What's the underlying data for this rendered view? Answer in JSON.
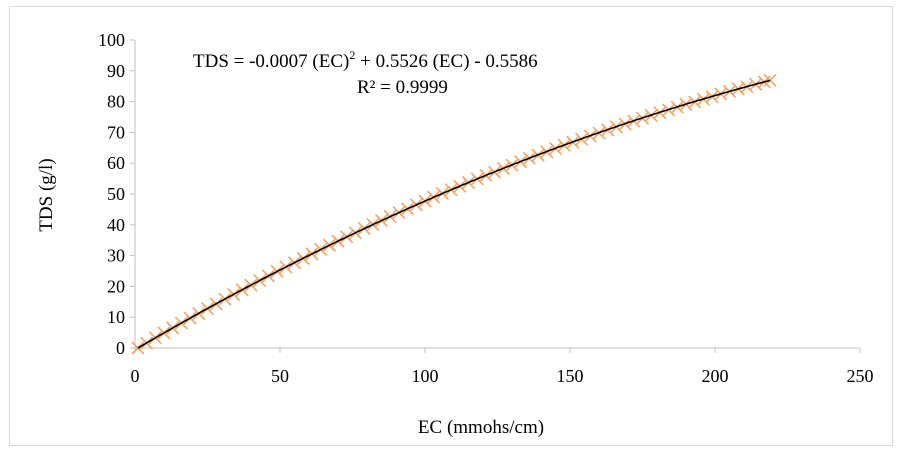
{
  "chart_data": {
    "type": "scatter",
    "title": "",
    "xlabel": "EC (mmohs/cm)",
    "ylabel": "TDS (g/l)",
    "xlim": [
      0,
      250
    ],
    "ylim": [
      0,
      100
    ],
    "x_ticks": [
      "0",
      "50",
      "100",
      "150",
      "200",
      "250"
    ],
    "y_ticks": [
      "0",
      "10",
      "20",
      "30",
      "40",
      "50",
      "60",
      "70",
      "80",
      "90",
      "100"
    ],
    "grid": false,
    "legend": "none",
    "series": [
      {
        "marker": "x",
        "color": "#f4a460",
        "x": [
          1,
          4,
          7,
          10,
          13,
          16,
          19,
          22,
          25,
          28,
          31,
          34,
          37,
          40,
          43,
          46,
          49,
          52,
          55,
          58,
          61,
          64,
          67,
          70,
          73,
          76,
          79,
          82,
          85,
          88,
          91,
          94,
          97,
          100,
          103,
          106,
          109,
          112,
          115,
          118,
          121,
          124,
          127,
          130,
          133,
          136,
          139,
          142,
          145,
          148,
          151,
          154,
          157,
          160,
          163,
          166,
          169,
          172,
          175,
          178,
          181,
          184,
          187,
          190,
          193,
          196,
          199,
          202,
          205,
          208,
          211,
          214,
          217,
          219
        ],
        "y": [
          0,
          1.6,
          3.3,
          4.9,
          6.5,
          8.1,
          9.7,
          11.2,
          12.8,
          14.3,
          15.9,
          17.4,
          18.9,
          20.4,
          21.9,
          23.4,
          24.9,
          26.3,
          27.7,
          29.1,
          30.6,
          32.0,
          33.4,
          34.7,
          36.1,
          37.4,
          38.8,
          40.1,
          41.4,
          42.7,
          44.0,
          45.2,
          46.5,
          47.7,
          49.0,
          50.2,
          51.4,
          52.5,
          53.7,
          54.9,
          56.0,
          57.1,
          58.3,
          59.4,
          60.5,
          61.6,
          62.6,
          63.7,
          64.8,
          65.8,
          66.8,
          67.8,
          68.8,
          69.8,
          70.8,
          71.8,
          72.7,
          73.7,
          74.6,
          75.5,
          76.4,
          77.3,
          78.2,
          79.1,
          79.9,
          80.8,
          81.6,
          82.5,
          83.3,
          84.1,
          84.8,
          85.6,
          86.4,
          86.9
        ]
      }
    ],
    "trendline": {
      "type": "polynomial",
      "order": 2,
      "coefficients": [
        -0.0007,
        0.5526,
        -0.5586
      ],
      "x_range": [
        1,
        219
      ],
      "color": "#000000"
    },
    "annotation": {
      "equation_left": "TDS = -0.0007 (EC)",
      "equation_sup": "2",
      "equation_right": " + 0.5526 (EC) - 0.5586",
      "r2": "R² = 0.9999"
    }
  }
}
